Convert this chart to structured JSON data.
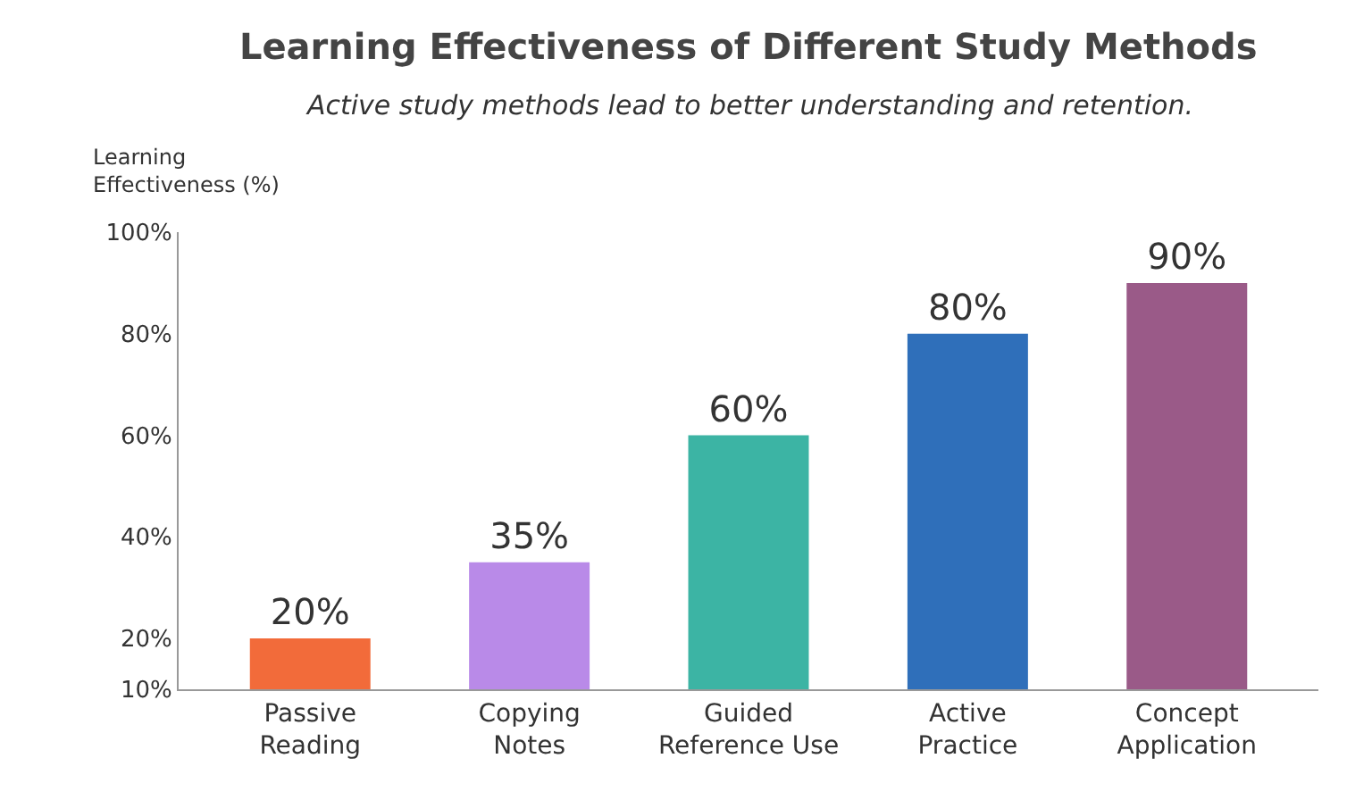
{
  "chart_data": {
    "type": "bar",
    "title": "Learning Effectiveness of Different Study Methods",
    "subtitle": "Active study methods lead to better understanding and retention.",
    "ylabel": "Learning\nEffectiveness (%)",
    "categories": [
      "Passive\nReading",
      "Copying\nNotes",
      "Guided\nReference Use",
      "Active\nPractice",
      "Concept\nApplication"
    ],
    "values": [
      20,
      35,
      60,
      80,
      90
    ],
    "colors": [
      "#f26b3a",
      "#b98ae8",
      "#3cb4a4",
      "#2f6fba",
      "#9a5a88"
    ],
    "value_labels": [
      "20%",
      "35%",
      "60%",
      "80%",
      "90%"
    ],
    "ylim": [
      10,
      100
    ],
    "yticks": [
      {
        "value": 10,
        "label": "10%"
      },
      {
        "value": 20,
        "label": "20%"
      },
      {
        "value": 40,
        "label": "40%"
      },
      {
        "value": 60,
        "label": "60%"
      },
      {
        "value": 80,
        "label": "80%"
      },
      {
        "value": 100,
        "label": "100%"
      }
    ],
    "grid": false
  }
}
